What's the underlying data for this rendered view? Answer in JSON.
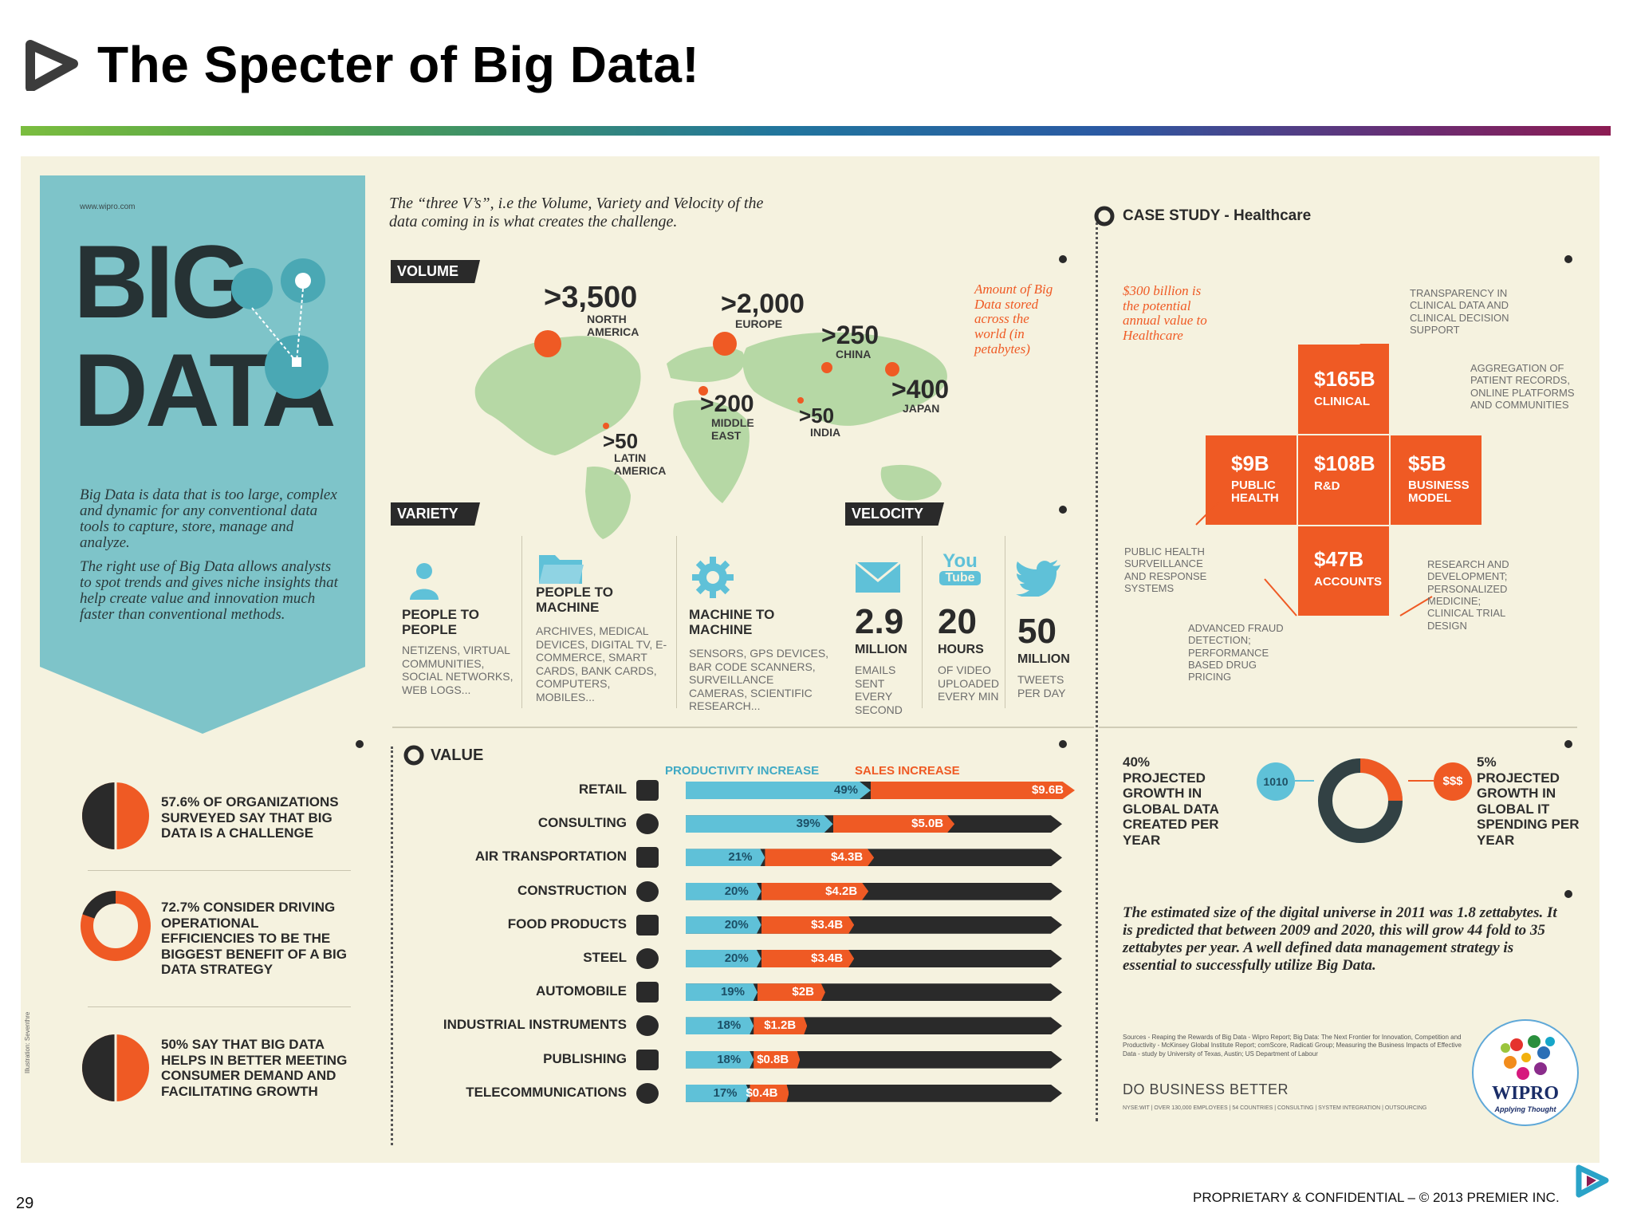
{
  "slide": {
    "title": "The Specter of Big Data!",
    "page_number": "29",
    "footer": "PROPRIETARY & CONFIDENTIAL – © 2013 PREMIER INC."
  },
  "left_panel": {
    "url": "www.wipro.com",
    "big": "BIG",
    "data": "DATA",
    "definition": "Big Data is data that is too large, complex and dynamic for any conventional data tools to capture, store, manage and analyze.",
    "right_use": "The right use of Big Data allows analysts to spot trends and gives niche insights that help create value and innovation much faster than conventional methods.",
    "stats": [
      "57.6% of organizations surveyed say that big data is a challenge",
      "72.7% consider driving operational efficiencies to be the biggest benefit of a big data strategy",
      "50% say that big data helps in better meeting consumer demand and facilitating growth"
    ],
    "illustration_credit": "Illustration: Seventhre"
  },
  "intro": "The “three V’s”, i.e the Volume, Variety and Velocity of the data coming in is what creates the challenge.",
  "volume": {
    "label": "VOLUME",
    "note": "Amount of Big Data stored across the world (in petabytes)",
    "regions": [
      {
        "value": ">3,500",
        "name": "NORTH AMERICA"
      },
      {
        "value": ">2,000",
        "name": "EUROPE"
      },
      {
        "value": ">250",
        "name": "CHINA"
      },
      {
        "value": ">400",
        "name": "JAPAN"
      },
      {
        "value": ">200",
        "name": "MIDDLE EAST"
      },
      {
        "value": ">50",
        "name": "INDIA"
      },
      {
        "value": ">50",
        "name": "LATIN AMERICA"
      }
    ]
  },
  "variety": {
    "label": "VARIETY",
    "items": [
      {
        "title": "PEOPLE TO PEOPLE",
        "desc": "NETIZENS, VIRTUAL COMMUNITIES, SOCIAL NETWORKS, WEB LOGS..."
      },
      {
        "title": "PEOPLE TO MACHINE",
        "desc": "ARCHIVES, MEDICAL DEVICES, DIGITAL TV, E-COMMERCE, SMART CARDS, BANK CARDS, COMPUTERS, MOBILES..."
      },
      {
        "title": "MACHINE TO MACHINE",
        "desc": "SENSORS, GPS DEVICES, BAR CODE SCANNERS, SURVEILLANCE CAMERAS, SCIENTIFIC RESEARCH..."
      }
    ]
  },
  "velocity": {
    "label": "VELOCITY",
    "youtube_top": "You",
    "youtube_bottom": "Tube",
    "items": [
      {
        "value": "2.9",
        "unit": "MILLION",
        "desc": "EMAILS SENT EVERY SECOND"
      },
      {
        "value": "20",
        "unit": "HOURS",
        "desc": "OF VIDEO UPLOADED EVERY MIN"
      },
      {
        "value": "50",
        "unit": "MILLION",
        "desc": "TWEETS PER DAY"
      }
    ]
  },
  "case_study": {
    "heading_bold": "CASE STUDY",
    "heading_rest": " - Healthcare",
    "potential": "$300 billion is the potential annual value to Healthcare",
    "boxes": {
      "clinical": {
        "value": "$165B",
        "label": "CLINICAL"
      },
      "public_health": {
        "value": "$9B",
        "label": "PUBLIC HEALTH"
      },
      "rnd": {
        "value": "$108B",
        "label": "R&D"
      },
      "business": {
        "value": "$5B",
        "label": "BUSINESS MODEL"
      },
      "accounts": {
        "value": "$47B",
        "label": "ACCOUNTS"
      }
    },
    "notes": {
      "transparency": "TRANSPARENCY IN CLINICAL DATA AND CLINICAL DECISION SUPPORT",
      "aggregation": "AGGREGATION OF PATIENT RECORDS, ONLINE PLATFORMS AND COMMUNITIES",
      "public_health": "PUBLIC HEALTH SURVEILLANCE AND RESPONSE SYSTEMS",
      "fraud": "ADVANCED FRAUD DETECTION; PERFORMANCE BASED DRUG PRICING",
      "research": "RESEARCH AND DEVELOPMENT; PERSONALIZED MEDICINE; CLINICAL TRIAL DESIGN"
    }
  },
  "value": {
    "label": "VALUE",
    "legend_productivity": "PRODUCTIVITY INCREASE",
    "legend_sales": "SALES INCREASE",
    "rows": [
      {
        "industry": "RETAIL",
        "productivity": 49,
        "prod_label": "49%",
        "sales": "$9.6B",
        "sales_value": 9.6,
        "icon": "tag-icon"
      },
      {
        "industry": "CONSULTING",
        "productivity": 39,
        "prod_label": "39%",
        "sales": "$5.0B",
        "sales_value": 5.0,
        "icon": "speech-bubble-icon"
      },
      {
        "industry": "AIR TRANSPORTATION",
        "productivity": 21,
        "prod_label": "21%",
        "sales": "$4.3B",
        "sales_value": 4.3,
        "icon": "airplane-icon"
      },
      {
        "industry": "CONSTRUCTION",
        "productivity": 20,
        "prod_label": "20%",
        "sales": "$4.2B",
        "sales_value": 4.2,
        "icon": "building-icon"
      },
      {
        "industry": "FOOD PRODUCTS",
        "productivity": 20,
        "prod_label": "20%",
        "sales": "$3.4B",
        "sales_value": 3.4,
        "icon": "burger-icon"
      },
      {
        "industry": "STEEL",
        "productivity": 20,
        "prod_label": "20%",
        "sales": "$3.4B",
        "sales_value": 3.4,
        "icon": "chain-link-icon"
      },
      {
        "industry": "AUTOMOBILE",
        "productivity": 19,
        "prod_label": "19%",
        "sales": "$2B",
        "sales_value": 2.0,
        "icon": "car-icon"
      },
      {
        "industry": "INDUSTRIAL INSTRUMENTS",
        "productivity": 18,
        "prod_label": "18%",
        "sales": "$1.2B",
        "sales_value": 1.2,
        "icon": "gear-icon"
      },
      {
        "industry": "PUBLISHING",
        "productivity": 18,
        "prod_label": "18%",
        "sales": "$0.8B",
        "sales_value": 0.8,
        "icon": "book-icon"
      },
      {
        "industry": "TELECOMMUNICATIONS",
        "productivity": 17,
        "prod_label": "17%",
        "sales": "$0.4B",
        "sales_value": 0.4,
        "icon": "telephone-icon"
      }
    ]
  },
  "growth": {
    "left": "40% PROJECTED GROWTH IN GLOBAL DATA CREATED PER YEAR",
    "right": "5% PROJECTED GROWTH IN GLOBAL IT SPENDING PER YEAR",
    "binary_label": "1010",
    "money_label": "$$$",
    "universe": "The estimated size of the digital universe in 2011 was 1.8 zettabytes. It is predicted that between 2009 and 2020, this will grow 44 fold to 35 zettabytes per year. A well defined data management strategy is essential to successfully utilize Big Data.",
    "sources": "Sources - Reaping the Rewards of Big Data - Wipro Report; Big Data: The Next Frontier for Innovation, Competition and Productivity - McKinsey Global Institute Report; comScore, Radicati Group; Measuring the Business Impacts of Effective Data - study by University of Texas, Austin; US Department of Labour",
    "tagline": "DO BUSINESS BETTER",
    "tagline_sub": "NYSE:WIT | OVER 130,000 EMPLOYEES | 54 COUNTRIES | CONSULTING | SYSTEM INTEGRATION | OUTSOURCING",
    "logo_text": "WIPRO",
    "logo_sub": "Applying Thought"
  },
  "colors": {
    "teal": "#7ec4c9",
    "orange": "#ef5a24",
    "cyan_bar": "#5fc1d8",
    "dark": "#2a2a2a",
    "cream": "#f5f2df"
  }
}
